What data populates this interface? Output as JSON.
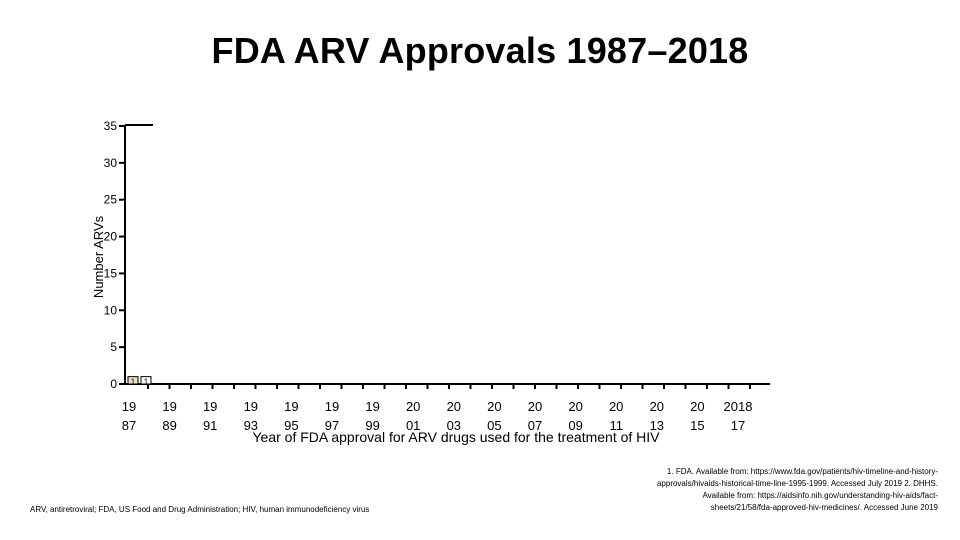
{
  "slide": {
    "title": "FDA ARV Approvals 1987–2018",
    "footnote": "ARV, antiretroviral; FDA, US Food and Drug Administration; HIV, human immunodeficiency virus",
    "references": [
      "1. FDA. Available from: https://www.fda.gov/patients/hiv-timeline-and-history-",
      "approvals/hivaids-historical-time-line-1995-1999. Accessed July 2019 2. DHHS.",
      "Available from: https://aidsinfo.nih.gov/understanding-hiv-aids/fact-",
      "sheets/21/58/fda-approved-hiv-medicines/. Accessed June 2019"
    ]
  },
  "chart_data": {
    "type": "bar",
    "title": "",
    "xlabel": "Year of FDA approval for ARV drugs used for the treatment of HIV",
    "ylabel": "Number ARVs",
    "ylim": [
      0,
      35
    ],
    "yticks": [
      0,
      5,
      10,
      15,
      20,
      25,
      30,
      35
    ],
    "x_tick_labels": [
      [
        "19",
        "87"
      ],
      [
        "19",
        "89"
      ],
      [
        "19",
        "91"
      ],
      [
        "19",
        "93"
      ],
      [
        "19",
        "95"
      ],
      [
        "19",
        "97"
      ],
      [
        "19",
        "99"
      ],
      [
        "20",
        "01"
      ],
      [
        "20",
        "03"
      ],
      [
        "20",
        "05"
      ],
      [
        "20",
        "07"
      ],
      [
        "20",
        "09"
      ],
      [
        "20",
        "11"
      ],
      [
        "20",
        "13"
      ],
      [
        "20",
        "15"
      ],
      [
        "2018",
        "17"
      ]
    ],
    "bar_labels": [
      "1",
      "1"
    ],
    "values": [
      1,
      1
    ],
    "bar_colors": [
      "#e9e2c0",
      "#ffffff"
    ],
    "colors": {
      "axis": "#000000",
      "text": "#000000"
    }
  }
}
